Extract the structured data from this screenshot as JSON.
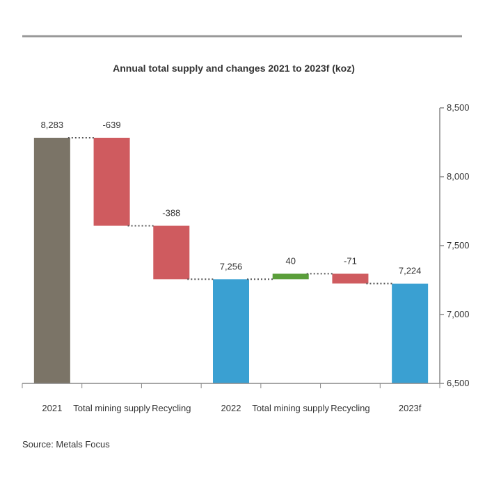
{
  "chart_data": {
    "type": "bar",
    "subtype": "waterfall",
    "title": "Annual total supply and changes 2021 to 2023f (koz)",
    "categories": [
      "2021",
      "Total mining supply",
      "Recycling",
      "2022",
      "Total mining supply",
      "Recycling",
      "2023f"
    ],
    "values": [
      8283,
      -639,
      -388,
      7256,
      40,
      -71,
      7224
    ],
    "kinds": [
      "total",
      "change",
      "change",
      "total",
      "change",
      "change",
      "total"
    ],
    "data_labels": [
      "8,283",
      "-639",
      "-388",
      "7,256",
      "40",
      "-71",
      "7,224"
    ],
    "ylim": [
      6500,
      8500
    ],
    "yticks": [
      6500,
      7000,
      7500,
      8000,
      8500
    ],
    "ytick_labels": [
      "6,500",
      "7,000",
      "7,500",
      "8,000",
      "8,500"
    ],
    "y_axis_side": "right",
    "xlabel": "",
    "ylabel": "",
    "colors": {
      "total_2021": "#7b7467",
      "total_other": "#3aa0d2",
      "increase": "#5a9e3a",
      "decrease": "#cf5b5f",
      "axis": "#888888",
      "connector": "#555555",
      "top_rule": "#999999"
    },
    "source": "Source: Metals Focus"
  }
}
